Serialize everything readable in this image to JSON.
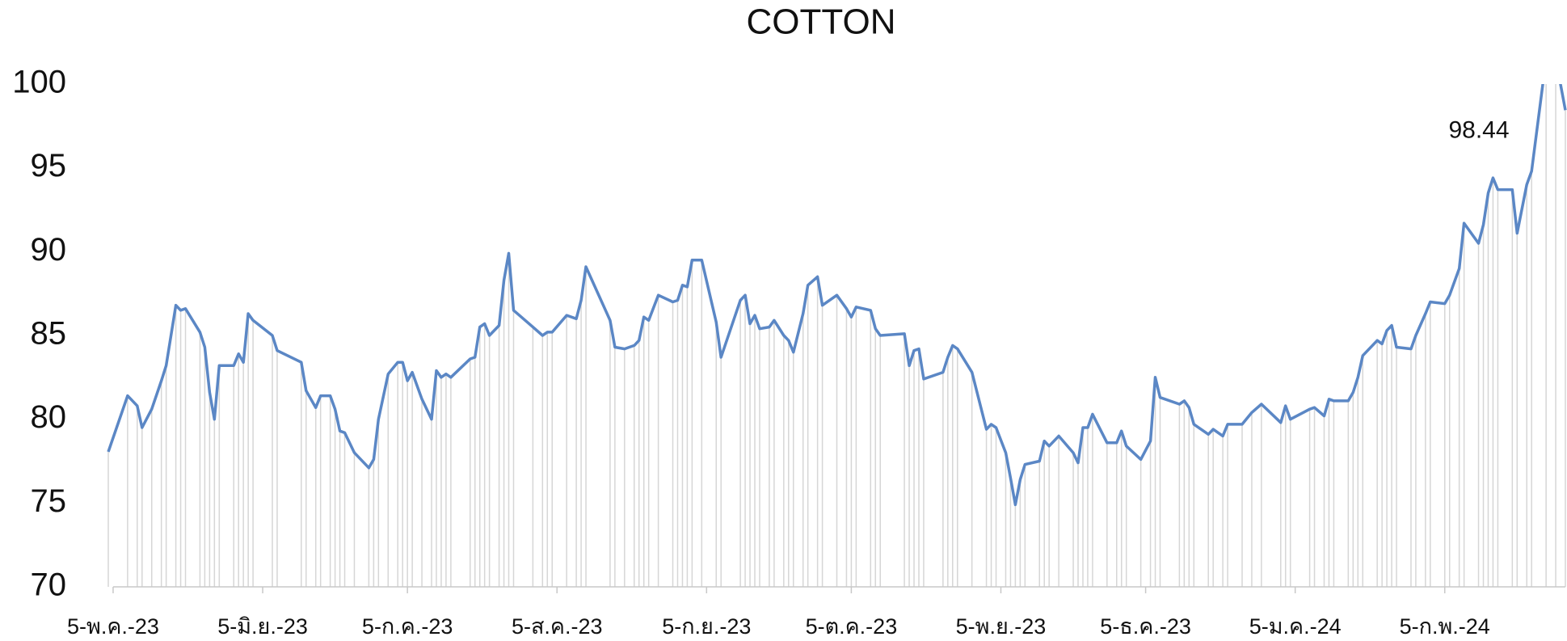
{
  "chart_data": {
    "type": "line",
    "title": "COTTON",
    "x": [
      "2023-05-04",
      "2023-05-08",
      "2023-05-10",
      "2023-05-11",
      "2023-05-13",
      "2023-05-15",
      "2023-05-16",
      "2023-05-18",
      "2023-05-19",
      "2023-05-20",
      "2023-05-23",
      "2023-05-24",
      "2023-05-25",
      "2023-05-26",
      "2023-05-27",
      "2023-05-30",
      "2023-05-31",
      "2023-06-01",
      "2023-06-02",
      "2023-06-03",
      "2023-06-07",
      "2023-06-08",
      "2023-06-13",
      "2023-06-14",
      "2023-06-16",
      "2023-06-17",
      "2023-06-19",
      "2023-06-20",
      "2023-06-21",
      "2023-06-22",
      "2023-06-24",
      "2023-06-27",
      "2023-06-28",
      "2023-06-29",
      "2023-07-01",
      "2023-07-03",
      "2023-07-04",
      "2023-07-05",
      "2023-07-06",
      "2023-07-08",
      "2023-07-10",
      "2023-07-11",
      "2023-07-12",
      "2023-07-13",
      "2023-07-14",
      "2023-07-18",
      "2023-07-19",
      "2023-07-20",
      "2023-07-21",
      "2023-07-22",
      "2023-07-24",
      "2023-07-25",
      "2023-07-26",
      "2023-07-27",
      "2023-07-31",
      "2023-08-02",
      "2023-08-03",
      "2023-08-04",
      "2023-08-07",
      "2023-08-09",
      "2023-08-10",
      "2023-08-11",
      "2023-08-16",
      "2023-08-17",
      "2023-08-19",
      "2023-08-21",
      "2023-08-22",
      "2023-08-23",
      "2023-08-24",
      "2023-08-26",
      "2023-08-29",
      "2023-08-30",
      "2023-08-31",
      "2023-09-01",
      "2023-09-02",
      "2023-09-04",
      "2023-09-07",
      "2023-09-08",
      "2023-09-12",
      "2023-09-13",
      "2023-09-14",
      "2023-09-15",
      "2023-09-16",
      "2023-09-18",
      "2023-09-19",
      "2023-09-21",
      "2023-09-22",
      "2023-09-23",
      "2023-09-25",
      "2023-09-26",
      "2023-09-28",
      "2023-09-29",
      "2023-10-02",
      "2023-10-04",
      "2023-10-05",
      "2023-10-06",
      "2023-10-09",
      "2023-10-10",
      "2023-10-11",
      "2023-10-16",
      "2023-10-17",
      "2023-10-18",
      "2023-10-19",
      "2023-10-20",
      "2023-10-24",
      "2023-10-25",
      "2023-10-26",
      "2023-10-27",
      "2023-10-30",
      "2023-11-02",
      "2023-11-03",
      "2023-11-04",
      "2023-11-06",
      "2023-11-07",
      "2023-11-08",
      "2023-11-09",
      "2023-11-10",
      "2023-11-13",
      "2023-11-14",
      "2023-11-15",
      "2023-11-17",
      "2023-11-20",
      "2023-11-21",
      "2023-11-22",
      "2023-11-23",
      "2023-11-24",
      "2023-11-27",
      "2023-11-29",
      "2023-11-30",
      "2023-12-01",
      "2023-12-04",
      "2023-12-06",
      "2023-12-07",
      "2023-12-08",
      "2023-12-12",
      "2023-12-13",
      "2023-12-14",
      "2023-12-15",
      "2023-12-18",
      "2023-12-19",
      "2023-12-21",
      "2023-12-22",
      "2023-12-25",
      "2023-12-27",
      "2023-12-29",
      "2024-01-02",
      "2024-01-03",
      "2024-01-04",
      "2024-01-08",
      "2024-01-09",
      "2024-01-11",
      "2024-01-12",
      "2024-01-13",
      "2024-01-16",
      "2024-01-17",
      "2024-01-18",
      "2024-01-19",
      "2024-01-22",
      "2024-01-23",
      "2024-01-24",
      "2024-01-25",
      "2024-01-26",
      "2024-01-29",
      "2024-01-30",
      "2024-02-01",
      "2024-02-02",
      "2024-02-05",
      "2024-02-06",
      "2024-02-08",
      "2024-02-09",
      "2024-02-12",
      "2024-02-13",
      "2024-02-14",
      "2024-02-15",
      "2024-02-16",
      "2024-02-19",
      "2024-02-20",
      "2024-02-22",
      "2024-02-23",
      "2024-02-26",
      "2024-02-28",
      "2024-03-01"
    ],
    "series": [
      {
        "color": "#5b87c5",
        "values": [
          78.06,
          81.4,
          80.8,
          79.5,
          80.6,
          82.3,
          83.2,
          86.8,
          86.5,
          86.6,
          85.2,
          84.3,
          81.6,
          80.0,
          83.2,
          83.2,
          83.9,
          83.4,
          86.3,
          85.9,
          85.0,
          84.1,
          83.4,
          81.7,
          80.7,
          81.4,
          81.4,
          80.6,
          79.3,
          79.2,
          78.0,
          77.1,
          77.6,
          80.0,
          82.7,
          83.4,
          83.4,
          82.3,
          82.8,
          81.2,
          80.0,
          82.9,
          82.5,
          82.7,
          82.5,
          83.6,
          83.7,
          85.5,
          85.7,
          85.0,
          85.6,
          88.3,
          89.9,
          86.5,
          85.5,
          85.0,
          85.2,
          85.2,
          86.2,
          86.0,
          87.1,
          89.1,
          85.9,
          84.3,
          84.2,
          84.4,
          84.7,
          86.1,
          85.9,
          87.4,
          87.0,
          87.1,
          88.0,
          87.9,
          89.5,
          89.5,
          85.8,
          83.7,
          87.1,
          87.4,
          85.7,
          86.2,
          85.4,
          85.5,
          85.9,
          85.0,
          84.7,
          84.0,
          86.3,
          88.0,
          88.5,
          86.8,
          87.4,
          86.6,
          86.1,
          86.7,
          86.5,
          85.4,
          85.0,
          85.1,
          83.2,
          84.1,
          84.2,
          82.4,
          82.8,
          83.7,
          84.4,
          84.2,
          82.8,
          79.4,
          79.7,
          79.5,
          78.0,
          76.5,
          74.9,
          76.4,
          77.3,
          77.5,
          78.7,
          78.4,
          79.0,
          78.0,
          77.4,
          79.5,
          79.5,
          80.3,
          78.6,
          78.6,
          79.3,
          78.4,
          77.6,
          78.7,
          82.5,
          81.3,
          80.9,
          81.1,
          80.7,
          79.7,
          79.1,
          79.4,
          79.0,
          79.7,
          79.7,
          80.4,
          80.9,
          79.8,
          80.8,
          80.0,
          80.6,
          80.7,
          80.2,
          81.2,
          81.1,
          81.1,
          81.6,
          82.5,
          83.8,
          84.7,
          84.5,
          85.3,
          85.6,
          84.3,
          84.2,
          85.0,
          86.3,
          87.0,
          86.9,
          87.4,
          89.0,
          91.7,
          90.5,
          91.6,
          93.5,
          94.4,
          93.7,
          93.7,
          91.1,
          94.0,
          94.8,
          101.5,
          101.5,
          98.44
        ]
      }
    ],
    "label_last": true,
    "drop_lines": true,
    "xlim": [
      "2023-05-04",
      "2024-03-01"
    ],
    "xticks": [
      {
        "value": "2023-05-05",
        "label": "5-พ.ค.-23"
      },
      {
        "value": "2023-06-05",
        "label": "5-มิ.ย.-23"
      },
      {
        "value": "2023-07-05",
        "label": "5-ก.ค.-23"
      },
      {
        "value": "2023-08-05",
        "label": "5-ส.ค.-23"
      },
      {
        "value": "2023-09-05",
        "label": "5-ก.ย.-23"
      },
      {
        "value": "2023-10-05",
        "label": "5-ต.ค.-23"
      },
      {
        "value": "2023-11-05",
        "label": "5-พ.ย.-23"
      },
      {
        "value": "2023-12-05",
        "label": "5-ธ.ค.-23"
      },
      {
        "value": "2024-01-05",
        "label": "5-ม.ค.-24"
      },
      {
        "value": "2024-02-05",
        "label": "5-ก.พ.-24"
      }
    ],
    "ylim": [
      70,
      100
    ],
    "yticks": [
      70,
      75,
      80,
      85,
      90,
      95,
      100
    ],
    "grid": false
  }
}
